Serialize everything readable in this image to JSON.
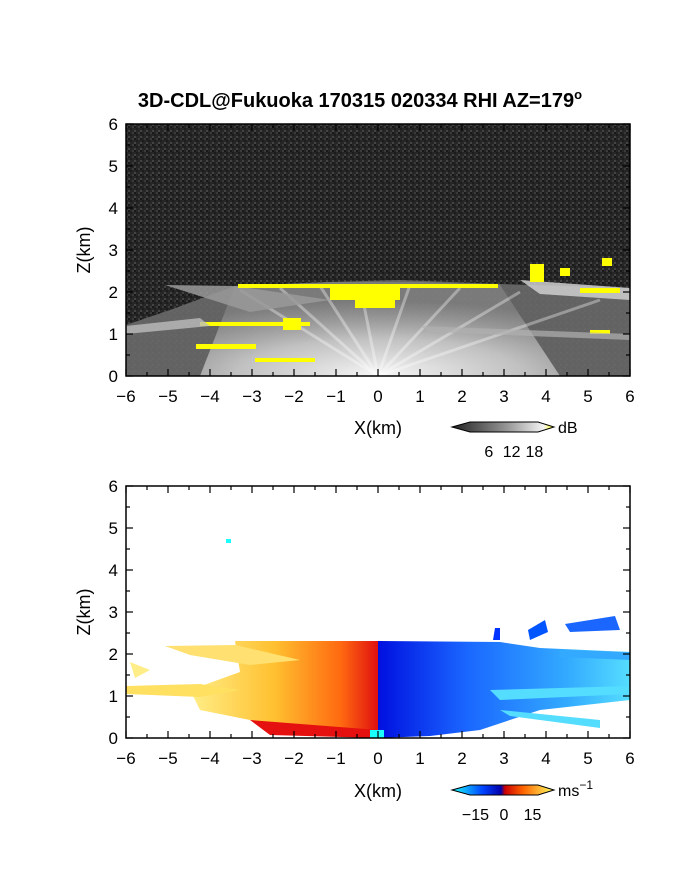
{
  "title": {
    "main": "3D-CDL@Fukuoka 170315 020334 RHI AZ=179",
    "sup": "o"
  },
  "chart_data": [
    {
      "type": "heatmap",
      "name": "reflectivity",
      "xlabel": "X(km)",
      "ylabel": "Z(km)",
      "xlim": [
        -6,
        6
      ],
      "ylim": [
        0,
        6
      ],
      "xticks": [
        "-6",
        "-5",
        "-4",
        "-3",
        "-2",
        "-1",
        "0",
        "1",
        "2",
        "3",
        "4",
        "5",
        "6"
      ],
      "yticks": [
        "0",
        "1",
        "2",
        "3",
        "4",
        "5",
        "6"
      ],
      "colorbar": {
        "ticks": [
          "6",
          "12",
          "18"
        ],
        "unit": "dB",
        "range": [
          0,
          20
        ]
      },
      "colors": {
        "background": "#2b2b2b",
        "echo_low": "#888888",
        "echo_high": "#f0f0f0",
        "saturated": "#ffff00"
      }
    },
    {
      "type": "heatmap",
      "name": "doppler-velocity",
      "xlabel": "X(km)",
      "ylabel": "Z(km)",
      "xlim": [
        -6,
        6
      ],
      "ylim": [
        0,
        6
      ],
      "xticks": [
        "-6",
        "-5",
        "-4",
        "-3",
        "-2",
        "-1",
        "0",
        "1",
        "2",
        "3",
        "4",
        "5",
        "6"
      ],
      "yticks": [
        "0",
        "1",
        "2",
        "3",
        "4",
        "5",
        "6"
      ],
      "colorbar": {
        "ticks": [
          "−15",
          "0",
          "15"
        ],
        "unit": "ms",
        "unit_sup": "−1",
        "range": [
          -20,
          20
        ]
      },
      "colors": {
        "negative": "#0033ff",
        "weak_negative": "#33ccff",
        "zero": "#ff2200",
        "positive": "#ffee66"
      }
    }
  ]
}
